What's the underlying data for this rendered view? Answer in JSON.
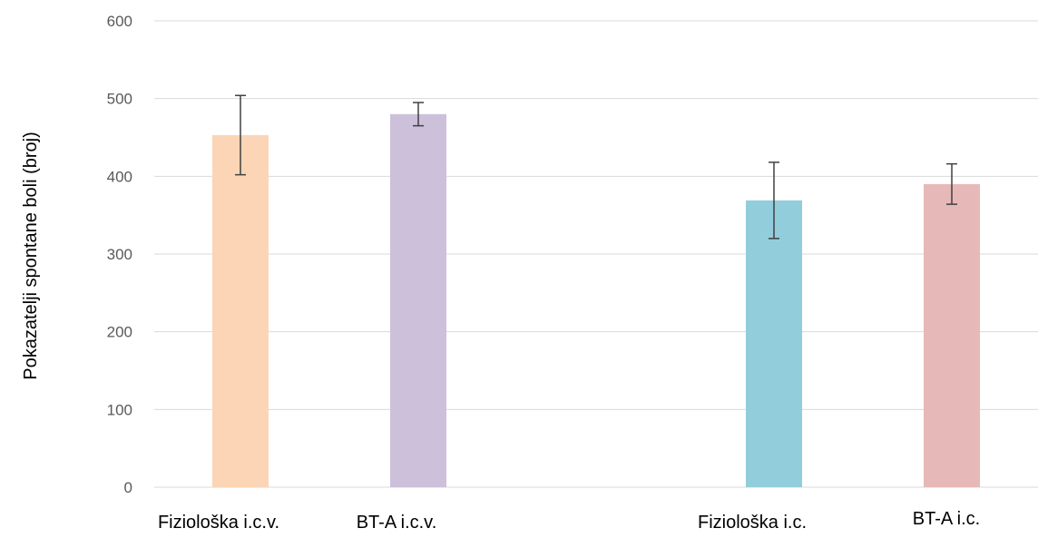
{
  "chart_data": {
    "type": "bar",
    "title": "",
    "xlabel": "",
    "ylabel": "Pokazatelji spontane boli (broj)",
    "ylim": [
      0,
      600
    ],
    "yticks": [
      0,
      100,
      200,
      300,
      400,
      500,
      600
    ],
    "grid": true,
    "categories": [
      "Fiziološka i.c.v.",
      "BT-A i.c.v.",
      "Fiziološka i.c.",
      "BT-A i.c."
    ],
    "values": [
      453,
      480,
      369,
      390
    ],
    "error": [
      51,
      15,
      49,
      26
    ],
    "colors": [
      "#fbd5b5",
      "#ccc0da",
      "#92cddc",
      "#e6b9b8"
    ]
  }
}
